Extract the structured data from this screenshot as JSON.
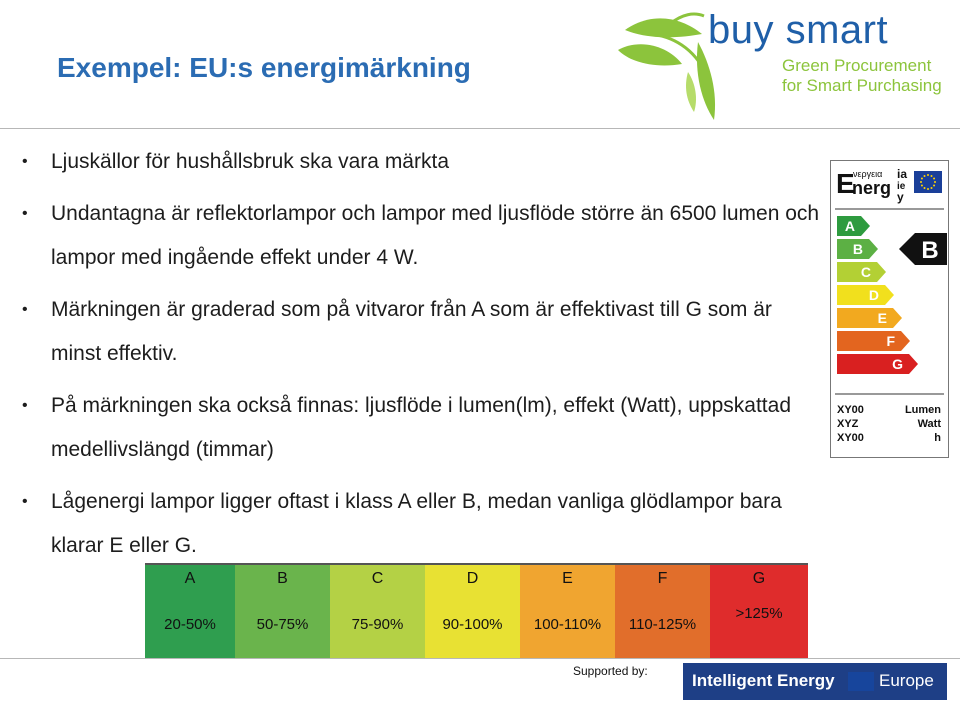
{
  "title": "Exempel: EU:s energimärkning",
  "logo": {
    "name": "buy smart",
    "tagline_1": "Green Procurement",
    "tagline_2": "for Smart Purchasing"
  },
  "bullets": [
    "Ljuskällor för hushållsbruk ska vara märkta",
    "Undantagna är reflektorlampor och lampor med ljusflöde större än 6500 lumen och lampor med ingående effekt under 4 W.",
    "Märkningen är graderad som på vitvaror från A som är effektivast till G som är minst effektiv.",
    "På märkningen ska också finnas: ljusflöde i lumen(lm), effekt (Watt), uppskattad medellivslängd (timmar)",
    "Lågenergi lampor ligger oftast i klass A eller B, medan vanliga glödlampor bara klarar E eller G."
  ],
  "energy_label": {
    "header_e": "E",
    "header_word": "nerg",
    "header_small": "νεργεια",
    "header_ia": "ia",
    "header_ie": "ie",
    "header_y": "y",
    "classes": [
      "A",
      "B",
      "C",
      "D",
      "E",
      "F",
      "G"
    ],
    "class_colors": [
      "#2e9b3f",
      "#5cb044",
      "#b3d034",
      "#f1e01d",
      "#f2a91f",
      "#e3651f",
      "#d92020"
    ],
    "rating": "B",
    "specs": [
      {
        "code": "XY00",
        "unit": "Lumen"
      },
      {
        "code": "XYZ",
        "unit": "Watt"
      },
      {
        "code": "XY00",
        "unit": "h"
      }
    ]
  },
  "scale": [
    {
      "class": "A",
      "range": "20-50%",
      "color": "#2f9e4f"
    },
    {
      "class": "B",
      "range": "50-75%",
      "color": "#6ab44c"
    },
    {
      "class": "C",
      "range": "75-90%",
      "color": "#b4d145"
    },
    {
      "class": "D",
      "range": "90-100%",
      "color": "#e8e133"
    },
    {
      "class": "E",
      "range": "100-110%",
      "color": "#f0a530"
    },
    {
      "class": "F",
      "range": "110-125%",
      "color": "#e16e2b"
    },
    {
      "class": "G",
      "range": ">125%",
      "color": "#df2c2c"
    }
  ],
  "footer": {
    "supported_by": "Supported by:",
    "program_1": "Intelligent Energy",
    "program_2": "Europe"
  }
}
